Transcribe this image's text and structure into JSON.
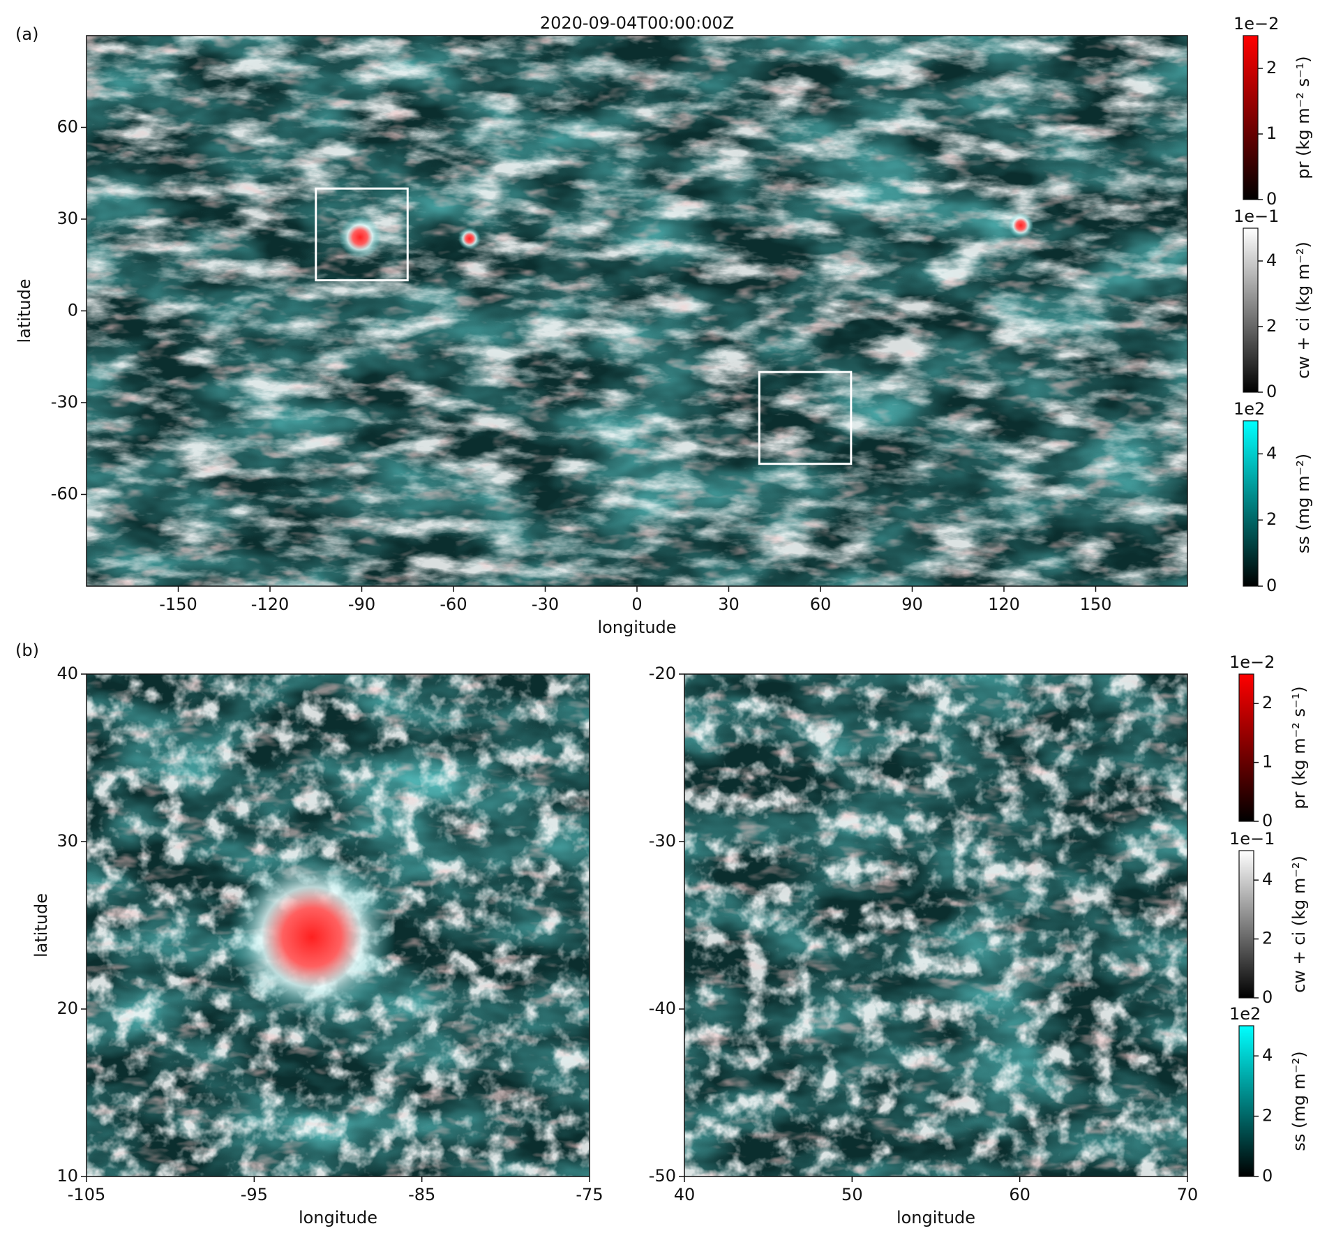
{
  "panel_labels": [
    "(a)",
    "(b)"
  ],
  "chart_data": [
    {
      "type": "map",
      "title": "2020-09-04T00:00:00Z",
      "xlabel": "longitude",
      "ylabel": "latitude",
      "xlim": [
        -180,
        180
      ],
      "ylim": [
        -90,
        90
      ],
      "xticks": [
        -150,
        -120,
        -90,
        -60,
        -30,
        0,
        30,
        60,
        90,
        120,
        150
      ],
      "yticks": [
        -60,
        -30,
        0,
        30,
        60
      ],
      "boxes": [
        {
          "xlim": [
            -105,
            -75
          ],
          "ylim": [
            10,
            40
          ],
          "color": "#ffffff"
        },
        {
          "xlim": [
            40,
            70
          ],
          "ylim": [
            -50,
            -20
          ],
          "color": "#ffffff"
        }
      ]
    },
    {
      "type": "map",
      "xlabel": "longitude",
      "ylabel": "latitude",
      "xlim": [
        -105,
        -75
      ],
      "ylim": [
        10,
        40
      ],
      "xticks": [
        -105,
        -95,
        -85,
        -75
      ],
      "yticks": [
        10,
        20,
        30,
        40
      ]
    },
    {
      "type": "map",
      "xlabel": "longitude",
      "xlim": [
        40,
        70
      ],
      "ylim": [
        -50,
        -20
      ],
      "xticks": [
        40,
        50,
        60,
        70
      ],
      "yticks": [
        -50,
        -40,
        -30,
        -20
      ]
    },
    {
      "type": "colorbar",
      "label": "pr (kg m⁻² s⁻¹)",
      "offset_label": "1e−2",
      "color": "#ff0000",
      "ylim": [
        0,
        2.5
      ],
      "yticks": [
        0,
        1,
        2
      ]
    },
    {
      "type": "colorbar",
      "label": "cw + ci (kg m⁻²)",
      "offset_label": "1e−1",
      "color": "#ffffff",
      "ylim": [
        0,
        5
      ],
      "yticks": [
        0,
        2,
        4
      ]
    },
    {
      "type": "colorbar",
      "label": "ss (mg m⁻²)",
      "offset_label": "1e2",
      "color": "#00ffff",
      "ylim": [
        0,
        5
      ],
      "yticks": [
        0,
        2,
        4
      ]
    },
    {
      "type": "colorbar",
      "label": "pr (kg m⁻² s⁻¹)",
      "offset_label": "1e−2",
      "color": "#ff0000",
      "ylim": [
        0,
        2.5
      ],
      "yticks": [
        0,
        1,
        2
      ]
    },
    {
      "type": "colorbar",
      "label": "cw + ci (kg m⁻²)",
      "offset_label": "1e−1",
      "color": "#ffffff",
      "ylim": [
        0,
        5
      ],
      "yticks": [
        0,
        2,
        4
      ]
    },
    {
      "type": "colorbar",
      "label": "ss (mg m⁻²)",
      "offset_label": "1e2",
      "color": "#00ffff",
      "ylim": [
        0,
        5
      ],
      "yticks": [
        0,
        2,
        4
      ]
    }
  ]
}
